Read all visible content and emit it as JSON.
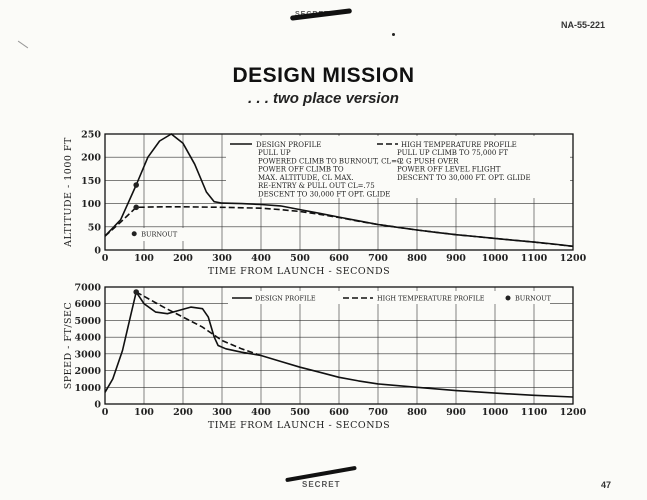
{
  "document": {
    "code": "NA-55-221",
    "classification": "SECRET",
    "page_number": "47",
    "title": "DESIGN MISSION",
    "subtitle": ". . . two place version"
  },
  "chart_data": [
    {
      "type": "line",
      "id": "altitude",
      "ylabel": "ALTITUDE - 1000 FT",
      "xlabel": "TIME FROM LAUNCH - SECONDS",
      "xlim": [
        0,
        1200
      ],
      "ylim": [
        0,
        250
      ],
      "xticks": [
        0,
        100,
        200,
        300,
        400,
        500,
        600,
        700,
        800,
        900,
        1000,
        1100,
        1200
      ],
      "yticks": [
        0,
        50,
        100,
        150,
        200,
        250
      ],
      "grid": true,
      "series": [
        {
          "name": "DESIGN PROFILE",
          "style": "solid",
          "points": [
            [
              0,
              30
            ],
            [
              40,
              65
            ],
            [
              80,
              140
            ],
            [
              110,
              200
            ],
            [
              140,
              235
            ],
            [
              170,
              250
            ],
            [
              200,
              230
            ],
            [
              230,
              185
            ],
            [
              260,
              125
            ],
            [
              280,
              104
            ],
            [
              300,
              101
            ],
            [
              350,
              100
            ],
            [
              400,
              98
            ],
            [
              450,
              95
            ],
            [
              500,
              87
            ],
            [
              550,
              79
            ],
            [
              600,
              71
            ],
            [
              650,
              63
            ],
            [
              700,
              55
            ],
            [
              750,
              49
            ],
            [
              800,
              43
            ],
            [
              850,
              38
            ],
            [
              900,
              33
            ],
            [
              950,
              29
            ],
            [
              1000,
              25
            ],
            [
              1050,
              21
            ],
            [
              1100,
              17
            ],
            [
              1150,
              13
            ],
            [
              1200,
              8
            ]
          ]
        },
        {
          "name": "HIGH TEMPERATURE PROFILE",
          "style": "dashed",
          "points": [
            [
              0,
              30
            ],
            [
              40,
              60
            ],
            [
              80,
              92
            ],
            [
              150,
              93
            ],
            [
              200,
              93
            ],
            [
              300,
              92
            ],
            [
              400,
              90
            ],
            [
              450,
              87
            ],
            [
              500,
              83
            ],
            [
              550,
              77
            ],
            [
              600,
              70
            ],
            [
              650,
              62
            ],
            [
              700,
              55
            ],
            [
              800,
              43
            ],
            [
              900,
              33
            ],
            [
              1000,
              25
            ],
            [
              1100,
              17
            ],
            [
              1200,
              8
            ]
          ]
        }
      ],
      "markers": [
        {
          "label": "BURNOUT",
          "x": 80,
          "y": 140
        },
        {
          "label": "",
          "x": 80,
          "y": 92
        }
      ],
      "legend_marker": {
        "label": "BURNOUT",
        "x": 80,
        "y": 35
      },
      "legend": {
        "design": {
          "title": "DESIGN PROFILE",
          "lines": [
            "PULL UP",
            "POWERED CLIMB TO BURNOUT, CL=0",
            "POWER OFF CLIMB TO",
            "MAX. ALTITUDE, CL MAX.",
            "RE-ENTRY & PULL OUT CL=.75",
            "DESCENT TO 30,000 FT OPT. GLIDE"
          ]
        },
        "high_temp": {
          "title": "HIGH TEMPERATURE PROFILE",
          "lines": [
            "PULL UP CLIMB TO 75,000 FT",
            "-2 G PUSH OVER",
            "POWER OFF  LEVEL FLIGHT",
            "DESCENT TO 30,000 FT.  OPT. GLIDE"
          ]
        },
        "placement": "top-right"
      }
    },
    {
      "type": "line",
      "id": "speed",
      "ylabel": "SPEED - FT/SEC",
      "xlabel": "TIME FROM LAUNCH - SECONDS",
      "xlim": [
        0,
        1200
      ],
      "ylim": [
        0,
        7000
      ],
      "xticks": [
        0,
        100,
        200,
        300,
        400,
        500,
        600,
        700,
        800,
        900,
        1000,
        1100,
        1200
      ],
      "yticks": [
        0,
        1000,
        2000,
        3000,
        4000,
        5000,
        6000,
        7000
      ],
      "grid": true,
      "series": [
        {
          "name": "DESIGN PROFILE",
          "style": "solid",
          "points": [
            [
              0,
              700
            ],
            [
              20,
              1500
            ],
            [
              45,
              3200
            ],
            [
              65,
              5200
            ],
            [
              80,
              6700
            ],
            [
              100,
              6000
            ],
            [
              130,
              5500
            ],
            [
              160,
              5400
            ],
            [
              190,
              5600
            ],
            [
              220,
              5800
            ],
            [
              250,
              5700
            ],
            [
              265,
              5200
            ],
            [
              280,
              4000
            ],
            [
              290,
              3500
            ],
            [
              310,
              3300
            ],
            [
              350,
              3100
            ],
            [
              400,
              2900
            ],
            [
              450,
              2550
            ],
            [
              500,
              2200
            ],
            [
              550,
              1900
            ],
            [
              600,
              1600
            ],
            [
              650,
              1380
            ],
            [
              700,
              1200
            ],
            [
              800,
              1000
            ],
            [
              900,
              800
            ],
            [
              1000,
              650
            ],
            [
              1100,
              520
            ],
            [
              1200,
              420
            ]
          ]
        },
        {
          "name": "HIGH TEMPERATURE PROFILE",
          "style": "dashed",
          "points": [
            [
              80,
              6700
            ],
            [
              150,
              5800
            ],
            [
              250,
              4600
            ],
            [
              300,
              3800
            ],
            [
              350,
              3300
            ],
            [
              400,
              2900
            ]
          ]
        }
      ],
      "markers": [
        {
          "label": "BURNOUT",
          "x": 80,
          "y": 6700
        }
      ],
      "legend": {
        "items": [
          "DESIGN PROFILE",
          "HIGH TEMPERATURE PROFILE",
          "BURNOUT"
        ],
        "placement": "top"
      }
    }
  ]
}
